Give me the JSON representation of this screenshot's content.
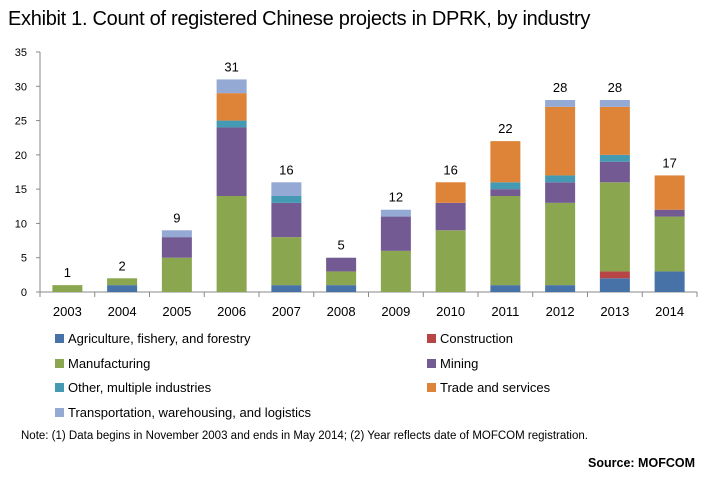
{
  "chart_data": {
    "type": "bar",
    "stacked": true,
    "title": "Exhibit 1. Count of registered  Chinese projects in DPRK, by industry",
    "xlabel": "",
    "ylabel": "",
    "ylim": [
      0,
      35
    ],
    "yticks": [
      0,
      5,
      10,
      15,
      20,
      25,
      30,
      35
    ],
    "grid": false,
    "legend_position": "bottom",
    "categories": [
      "2003",
      "2004",
      "2005",
      "2006",
      "2007",
      "2008",
      "2009",
      "2010",
      "2011",
      "2012",
      "2013",
      "2014"
    ],
    "totals": [
      1,
      2,
      9,
      31,
      16,
      5,
      12,
      16,
      22,
      28,
      28,
      17
    ],
    "series": [
      {
        "name": "Agriculture, fishery, and forestry",
        "color": "#4672a8",
        "values": [
          0,
          1,
          0,
          0,
          1,
          1,
          0,
          0,
          1,
          1,
          2,
          3
        ]
      },
      {
        "name": "Construction",
        "color": "#b84545",
        "values": [
          0,
          0,
          0,
          0,
          0,
          0,
          0,
          0,
          0,
          0,
          1,
          0
        ]
      },
      {
        "name": "Manufacturing",
        "color": "#8aa64e",
        "values": [
          1,
          1,
          5,
          14,
          7,
          2,
          6,
          9,
          13,
          12,
          13,
          8
        ]
      },
      {
        "name": "Mining",
        "color": "#735a92",
        "values": [
          0,
          0,
          3,
          10,
          5,
          2,
          5,
          4,
          1,
          3,
          3,
          1
        ]
      },
      {
        "name": "Other, multiple industries",
        "color": "#4499b3",
        "values": [
          0,
          0,
          0,
          1,
          1,
          0,
          0,
          0,
          1,
          1,
          1,
          0
        ]
      },
      {
        "name": "Trade and services",
        "color": "#de8439",
        "values": [
          0,
          0,
          0,
          4,
          0,
          0,
          0,
          3,
          6,
          10,
          7,
          5
        ]
      },
      {
        "name": "Transportation, warehousing, and logistics",
        "color": "#94a9d4",
        "values": [
          0,
          0,
          1,
          2,
          2,
          0,
          1,
          0,
          0,
          1,
          1,
          0
        ]
      }
    ]
  },
  "note": "Note:  (1) Data begins in November  2003 and ends in May 2014; (2) Year reflects date of MOFCOM registration.",
  "source": "Source: MOFCOM"
}
